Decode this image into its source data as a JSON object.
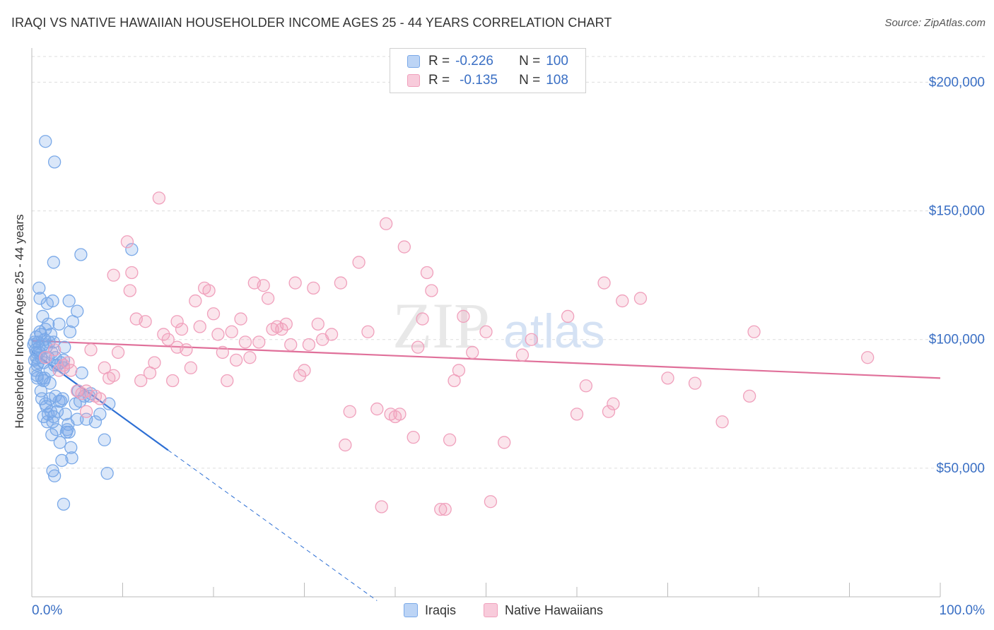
{
  "title": "IRAQI VS NATIVE HAWAIIAN HOUSEHOLDER INCOME AGES 25 - 44 YEARS CORRELATION CHART",
  "source": "Source: ZipAtlas.com",
  "watermark": {
    "zip": "ZIP",
    "atlas": "atlas"
  },
  "legend": {
    "iraqi": {
      "r_label": "R =",
      "r_value": "-0.226",
      "n_label": "N =",
      "n_value": "100",
      "color": "#7aa9e8"
    },
    "hawaiian": {
      "r_label": "R =",
      "r_value": "-0.135",
      "n_label": "N =",
      "n_value": "108",
      "color": "#f0a0bc"
    }
  },
  "bottom_legend": {
    "iraqi": "Iraqis",
    "hawaiian": "Native Hawaiians"
  },
  "chart_data": {
    "type": "scatter",
    "title": "IRAQI VS NATIVE HAWAIIAN HOUSEHOLDER INCOME AGES 25 - 44 YEARS CORRELATION CHART",
    "xlabel": "",
    "ylabel": "Householder Income Ages 25 - 44 years",
    "xlim": [
      0,
      100
    ],
    "ylim": [
      0,
      210000
    ],
    "x_tick_labels": [
      "0.0%",
      "100.0%"
    ],
    "y_ticks": [
      50000,
      100000,
      150000,
      200000
    ],
    "y_tick_labels": [
      "$50,000",
      "$100,000",
      "$150,000",
      "$200,000"
    ],
    "grid": "horizontal dashed",
    "legend_position": "top-center",
    "series": [
      {
        "name": "Iraqis",
        "color": "#7aa9e8",
        "line_color": "#2d6fd4",
        "trend": {
          "x_start": 0,
          "y_start": 95300,
          "x_end": 15,
          "y_end": 57000,
          "dashed_to_x": 38,
          "dashed_to_y": -1500
        },
        "points": [
          [
            0.2,
            98000
          ],
          [
            0.3,
            92000
          ],
          [
            0.4,
            88000
          ],
          [
            0.5,
            101000
          ],
          [
            0.5,
            95000
          ],
          [
            0.6,
            86000
          ],
          [
            0.6,
            90000
          ],
          [
            0.7,
            99000
          ],
          [
            0.8,
            120000
          ],
          [
            0.8,
            95000
          ],
          [
            0.9,
            116000
          ],
          [
            1.0,
            102000
          ],
          [
            1.0,
            93000
          ],
          [
            1.1,
            85000
          ],
          [
            1.2,
            109000
          ],
          [
            1.2,
            98000
          ],
          [
            1.3,
            91000
          ],
          [
            1.4,
            85000
          ],
          [
            1.5,
            104000
          ],
          [
            1.6,
            97000
          ],
          [
            1.7,
            114000
          ],
          [
            1.8,
            93000
          ],
          [
            1.9,
            99000
          ],
          [
            2.0,
            88000
          ],
          [
            2.1,
            102000
          ],
          [
            2.2,
            95000
          ],
          [
            2.3,
            115000
          ],
          [
            2.4,
            99000
          ],
          [
            2.5,
            90000
          ],
          [
            2.6,
            93000
          ],
          [
            1.0,
            80000
          ],
          [
            1.1,
            77000
          ],
          [
            1.3,
            70000
          ],
          [
            1.5,
            75000
          ],
          [
            1.6,
            74000
          ],
          [
            1.7,
            68000
          ],
          [
            1.8,
            71000
          ],
          [
            2.0,
            77000
          ],
          [
            2.1,
            72000
          ],
          [
            2.2,
            63000
          ],
          [
            2.3,
            68000
          ],
          [
            2.4,
            70000
          ],
          [
            2.6,
            78000
          ],
          [
            2.7,
            65000
          ],
          [
            2.8,
            72000
          ],
          [
            3.0,
            76000
          ],
          [
            3.1,
            60000
          ],
          [
            3.2,
            76000
          ],
          [
            3.3,
            53000
          ],
          [
            3.4,
            77000
          ],
          [
            3.5,
            92000
          ],
          [
            3.5,
            89000
          ],
          [
            3.6,
            97000
          ],
          [
            3.7,
            71000
          ],
          [
            3.8,
            64000
          ],
          [
            3.9,
            65000
          ],
          [
            4.0,
            67000
          ],
          [
            4.1,
            64000
          ],
          [
            4.3,
            58000
          ],
          [
            4.4,
            54000
          ],
          [
            4.2,
            103000
          ],
          [
            4.5,
            107000
          ],
          [
            4.8,
            75000
          ],
          [
            5.0,
            69000
          ],
          [
            5.1,
            80000
          ],
          [
            5.3,
            76000
          ],
          [
            5.5,
            87000
          ],
          [
            5.8,
            78000
          ],
          [
            6.0,
            69000
          ],
          [
            6.3,
            78000
          ],
          [
            6.5,
            79000
          ],
          [
            7.0,
            68000
          ],
          [
            7.5,
            71000
          ],
          [
            8.0,
            61000
          ],
          [
            8.3,
            48000
          ],
          [
            8.5,
            75000
          ],
          [
            2.5,
            47000
          ],
          [
            2.3,
            49000
          ],
          [
            3.5,
            36000
          ],
          [
            2.4,
            130000
          ],
          [
            1.5,
            177000
          ],
          [
            2.5,
            169000
          ],
          [
            5.4,
            133000
          ],
          [
            11.0,
            135000
          ],
          [
            4.1,
            115000
          ],
          [
            1.4,
            100000
          ],
          [
            3.0,
            106000
          ],
          [
            5.0,
            111000
          ],
          [
            2.0,
            83000
          ],
          [
            1.8,
            106000
          ],
          [
            0.9,
            103000
          ],
          [
            0.8,
            97000
          ],
          [
            0.7,
            91000
          ],
          [
            0.6,
            85000
          ],
          [
            0.5,
            93000
          ],
          [
            0.4,
            96000
          ],
          [
            0.3,
            99000
          ],
          [
            1.3,
            84000
          ],
          [
            2.8,
            90000
          ],
          [
            3.2,
            91000
          ]
        ]
      },
      {
        "name": "Native Hawaiians",
        "color": "#f0a0bc",
        "line_color": "#e0709a",
        "trend": {
          "x_start": 0,
          "y_start": 99500,
          "x_end": 100,
          "y_end": 85000
        },
        "points": [
          [
            1.5,
            93000
          ],
          [
            2.5,
            96000
          ],
          [
            3.0,
            88000
          ],
          [
            3.5,
            90000
          ],
          [
            4.0,
            91000
          ],
          [
            4.3,
            88000
          ],
          [
            5.0,
            80000
          ],
          [
            5.5,
            79000
          ],
          [
            6.0,
            72000
          ],
          [
            6.5,
            96000
          ],
          [
            7.0,
            78000
          ],
          [
            7.5,
            77000
          ],
          [
            8.0,
            89000
          ],
          [
            8.5,
            85000
          ],
          [
            9.0,
            125000
          ],
          [
            9.5,
            95000
          ],
          [
            10.5,
            138000
          ],
          [
            10.8,
            119000
          ],
          [
            11.0,
            126000
          ],
          [
            11.5,
            108000
          ],
          [
            12.0,
            84000
          ],
          [
            12.5,
            107000
          ],
          [
            13.0,
            87000
          ],
          [
            13.5,
            91000
          ],
          [
            14.0,
            155000
          ],
          [
            14.5,
            102000
          ],
          [
            15.0,
            100000
          ],
          [
            15.5,
            84000
          ],
          [
            16.0,
            97000
          ],
          [
            16.5,
            104000
          ],
          [
            17.0,
            96000
          ],
          [
            17.5,
            89000
          ],
          [
            18.0,
            115000
          ],
          [
            18.5,
            105000
          ],
          [
            19.0,
            120000
          ],
          [
            19.5,
            119000
          ],
          [
            20.0,
            110000
          ],
          [
            20.5,
            102000
          ],
          [
            21.0,
            95000
          ],
          [
            21.5,
            84000
          ],
          [
            22.0,
            103000
          ],
          [
            22.5,
            92000
          ],
          [
            23.0,
            108000
          ],
          [
            23.5,
            99000
          ],
          [
            24.0,
            93000
          ],
          [
            24.5,
            122000
          ],
          [
            25.0,
            99000
          ],
          [
            25.5,
            121000
          ],
          [
            26.0,
            116000
          ],
          [
            26.5,
            104000
          ],
          [
            27.0,
            105000
          ],
          [
            27.5,
            104000
          ],
          [
            28.0,
            106000
          ],
          [
            28.5,
            98000
          ],
          [
            29.0,
            122000
          ],
          [
            29.5,
            86000
          ],
          [
            30.0,
            88000
          ],
          [
            30.5,
            98000
          ],
          [
            31.0,
            120000
          ],
          [
            31.5,
            106000
          ],
          [
            32.0,
            100000
          ],
          [
            33.0,
            102000
          ],
          [
            34.0,
            122000
          ],
          [
            34.5,
            59000
          ],
          [
            35.0,
            72000
          ],
          [
            36.0,
            130000
          ],
          [
            37.0,
            103000
          ],
          [
            38.0,
            73000
          ],
          [
            38.5,
            35000
          ],
          [
            39.0,
            145000
          ],
          [
            39.5,
            71000
          ],
          [
            40.0,
            70000
          ],
          [
            40.5,
            71000
          ],
          [
            41.0,
            136000
          ],
          [
            42.0,
            62000
          ],
          [
            42.5,
            97000
          ],
          [
            43.0,
            108000
          ],
          [
            43.5,
            126000
          ],
          [
            44.0,
            119000
          ],
          [
            45.0,
            34000
          ],
          [
            45.5,
            34000
          ],
          [
            46.0,
            61000
          ],
          [
            46.5,
            84000
          ],
          [
            47.0,
            88000
          ],
          [
            47.5,
            109000
          ],
          [
            48.5,
            95000
          ],
          [
            50.0,
            103000
          ],
          [
            50.5,
            37000
          ],
          [
            52.0,
            60000
          ],
          [
            54.0,
            94000
          ],
          [
            55.0,
            100000
          ],
          [
            59.0,
            109000
          ],
          [
            60.0,
            71000
          ],
          [
            61.0,
            82000
          ],
          [
            63.0,
            122000
          ],
          [
            63.5,
            72000
          ],
          [
            64.0,
            75000
          ],
          [
            65.0,
            115000
          ],
          [
            67.0,
            116000
          ],
          [
            70.0,
            85000
          ],
          [
            73.0,
            83000
          ],
          [
            76.0,
            68000
          ],
          [
            79.0,
            78000
          ],
          [
            79.5,
            103000
          ],
          [
            92.0,
            93000
          ],
          [
            16.0,
            107000
          ],
          [
            9.0,
            86000
          ],
          [
            6.0,
            80000
          ]
        ]
      }
    ]
  }
}
